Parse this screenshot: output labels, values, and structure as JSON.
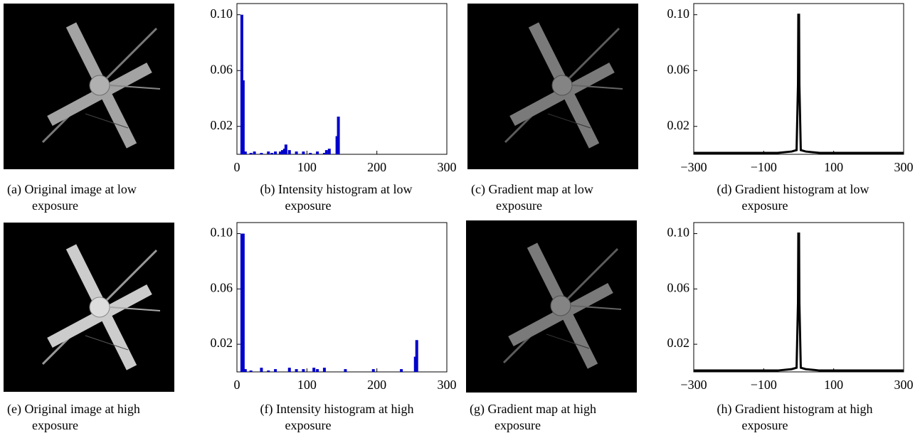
{
  "images": [
    {
      "caption": [
        "(a) Original image at low",
        "exposure"
      ]
    },
    {
      "caption": [
        "(c) Gradient map at low",
        "exposure"
      ]
    },
    {
      "caption": [
        "(e) Original image at high",
        "exposure"
      ]
    },
    {
      "caption": [
        "(g) Gradient map at high",
        "exposure"
      ]
    }
  ],
  "chart_data": [
    {
      "type": "bar",
      "caption": [
        "(b) Intensity histogram at low",
        "exposure"
      ],
      "color": "#0000cc",
      "x": [
        7,
        9,
        12,
        20,
        25,
        35,
        45,
        50,
        55,
        62,
        65,
        68,
        70,
        75,
        85,
        95,
        105,
        115,
        125,
        128,
        132,
        143,
        145
      ],
      "values": [
        0.1,
        0.053,
        0.002,
        0.001,
        0.002,
        0.001,
        0.002,
        0.001,
        0.002,
        0.002,
        0.003,
        0.004,
        0.007,
        0.003,
        0.002,
        0.002,
        0.001,
        0.002,
        0.001,
        0.003,
        0.004,
        0.013,
        0.027
      ],
      "xlim": [
        0,
        300
      ],
      "xticks": [
        0,
        100,
        200,
        300
      ],
      "ylim": [
        0,
        0.108
      ],
      "yticks": [
        0.02,
        0.06,
        {
          "value": 0.1,
          "label": "0.10"
        }
      ]
    },
    {
      "type": "line",
      "caption": [
        "(d) Gradient histogram at low",
        "exposure"
      ],
      "color": "#000000",
      "x": [
        -300,
        -60,
        -20,
        -6,
        -2,
        -1,
        0,
        1,
        2,
        6,
        20,
        60,
        300
      ],
      "values": [
        0.001,
        0.001,
        0.002,
        0.003,
        0.05,
        0.1,
        0.1,
        0.1,
        0.05,
        0.003,
        0.002,
        0.001,
        0.001
      ],
      "xlim": [
        -300,
        300
      ],
      "xticks": [
        {
          "value": -300,
          "label": "−300"
        },
        {
          "value": -100,
          "label": "−100"
        },
        100,
        300
      ],
      "ylim": [
        0,
        0.108
      ],
      "yticks": [
        0.02,
        0.06,
        {
          "value": 0.1,
          "label": "0.10"
        }
      ]
    },
    {
      "type": "bar",
      "caption": [
        "(f) Intensity histogram at high",
        "exposure"
      ],
      "color": "#0000cc",
      "x": [
        7,
        9,
        12,
        20,
        35,
        45,
        55,
        75,
        85,
        95,
        110,
        115,
        125,
        155,
        195,
        235,
        255,
        257
      ],
      "values": [
        0.1,
        0.1,
        0.002,
        0.001,
        0.003,
        0.001,
        0.002,
        0.003,
        0.002,
        0.002,
        0.003,
        0.002,
        0.003,
        0.002,
        0.002,
        0.002,
        0.011,
        0.023
      ],
      "xlim": [
        0,
        300
      ],
      "xticks": [
        0,
        100,
        200,
        300
      ],
      "ylim": [
        0,
        0.108
      ],
      "yticks": [
        0.02,
        0.06,
        {
          "value": 0.1,
          "label": "0.10"
        }
      ]
    },
    {
      "type": "line",
      "caption": [
        "(h) Gradient histogram at high",
        "exposure"
      ],
      "color": "#000000",
      "x": [
        -300,
        -60,
        -20,
        -6,
        -2,
        -1,
        0,
        1,
        2,
        6,
        20,
        60,
        300
      ],
      "values": [
        0.001,
        0.001,
        0.002,
        0.003,
        0.05,
        0.1,
        0.1,
        0.1,
        0.05,
        0.003,
        0.002,
        0.001,
        0.001
      ],
      "xlim": [
        -300,
        300
      ],
      "xticks": [
        {
          "value": -300,
          "label": "−300"
        },
        {
          "value": -100,
          "label": "−100"
        },
        100,
        300
      ],
      "ylim": [
        0,
        0.108
      ],
      "yticks": [
        0.02,
        0.06,
        {
          "value": 0.1,
          "label": "0.10"
        }
      ]
    }
  ]
}
